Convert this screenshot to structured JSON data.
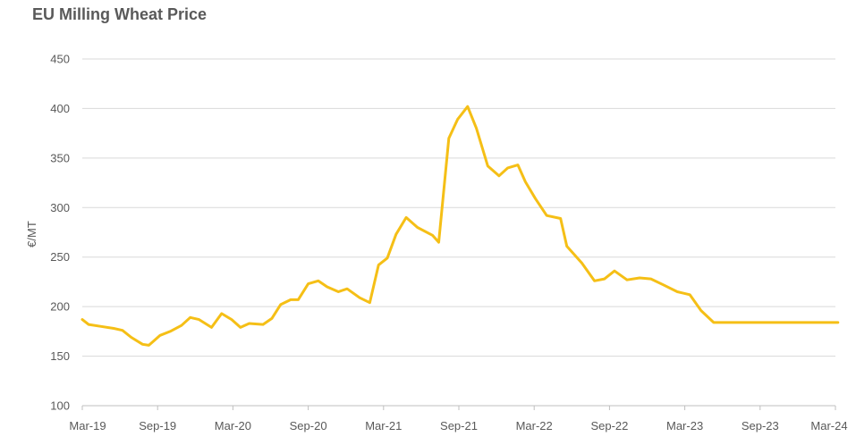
{
  "chart_data": {
    "type": "line",
    "title": "EU Milling Wheat Price",
    "ylabel": "€/MT",
    "xlabel": "",
    "ylim": [
      100,
      450
    ],
    "y_ticks": [
      100,
      150,
      200,
      250,
      300,
      350,
      400,
      450
    ],
    "x_tick_labels": [
      "Mar-19",
      "Sep-19",
      "Mar-20",
      "Sep-20",
      "Mar-21",
      "Sep-21",
      "Mar-22",
      "Sep-22",
      "Mar-23",
      "Sep-23",
      "Mar-24"
    ],
    "grid": "horizontal",
    "line_color": "#F5BF16",
    "series": [
      {
        "x": [
          0,
          0.5,
          1.5,
          2.5,
          3.2,
          3.9,
          4.8,
          5.3,
          6.2,
          7,
          7.9,
          8.6,
          9.3,
          10.3,
          11.1,
          11.9,
          12.6,
          13.3,
          14.4,
          15.1,
          15.8,
          16.6,
          17.2,
          18,
          18.8,
          19.5,
          20.4,
          21.1,
          22.1,
          22.9,
          23.6,
          24.3,
          25.0,
          25.8,
          26.7,
          27.9,
          28.4,
          29.2,
          29.9,
          30.7,
          31.4,
          32.3,
          33.2,
          33.9,
          34.7,
          35.3,
          36.1,
          37.0,
          38.1,
          38.6,
          39.8,
          40.8,
          41.6,
          42.4,
          43.4,
          44.4,
          45.3,
          46.3,
          47.4,
          48.4,
          49.3,
          50.3,
          50.9,
          51.6,
          52.5,
          53.2,
          54.5,
          55.2,
          56.0,
          56.6,
          57.3,
          58.3,
          59.3,
          60.2,
          60.7,
          61.4
        ],
        "y": [
          187,
          182,
          180,
          178,
          176,
          169,
          162,
          161,
          171,
          175,
          181,
          189,
          187,
          179,
          193,
          187,
          179,
          183,
          182,
          188,
          202,
          207,
          207,
          223,
          226,
          220,
          215,
          218,
          209,
          204,
          242,
          249,
          273,
          290,
          280,
          272,
          265,
          370,
          389,
          402,
          380,
          342,
          332,
          340,
          343,
          326,
          309,
          292,
          289,
          261,
          244,
          226,
          228,
          236,
          227,
          229,
          228,
          222,
          215,
          212,
          196,
          184,
          184,
          184,
          184,
          184,
          184,
          184,
          184,
          184,
          184,
          184,
          184,
          184,
          184,
          184
        ]
      }
    ]
  }
}
